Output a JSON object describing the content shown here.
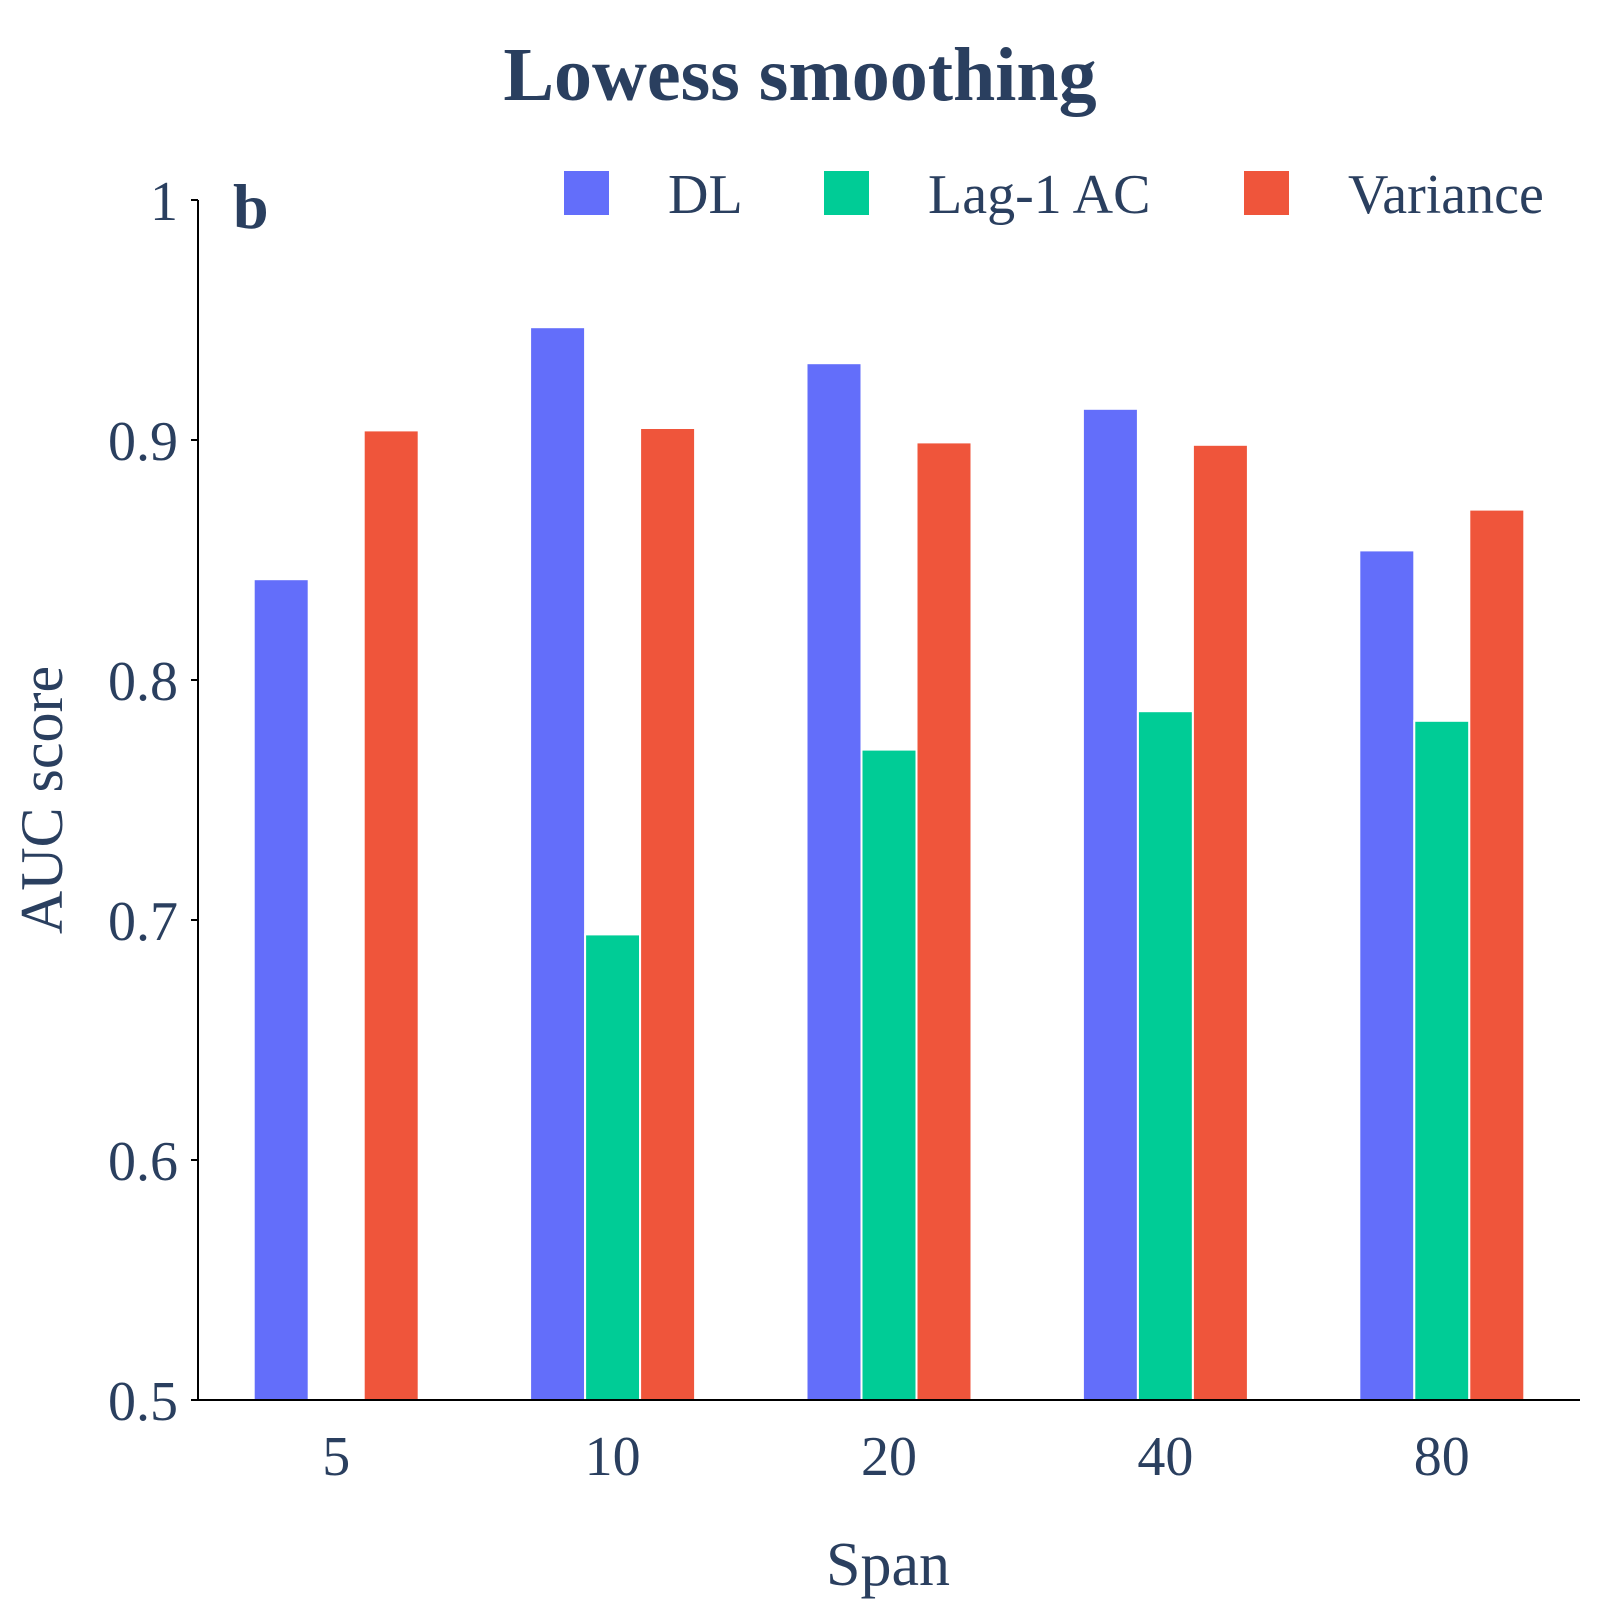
{
  "chart_data": {
    "type": "bar",
    "title": "Lowess smoothing",
    "panel_label": "b",
    "xlabel": "Span",
    "ylabel": "AUC score",
    "categories": [
      "5",
      "10",
      "20",
      "40",
      "80"
    ],
    "ylim": [
      0.5,
      1
    ],
    "yticks": [
      "0.5",
      "0.6",
      "0.7",
      "0.8",
      "0.9",
      "1"
    ],
    "legend_position": "top-right",
    "grid": false,
    "series": [
      {
        "name": "DL",
        "color": "#636efa",
        "values": [
          0.842,
          0.947,
          0.932,
          0.913,
          0.854
        ]
      },
      {
        "name": "Lag-1 AC",
        "color": "#00cc96",
        "values": [
          0.5,
          0.694,
          0.771,
          0.787,
          0.783
        ]
      },
      {
        "name": "Variance",
        "color": "#ef553b",
        "values": [
          0.904,
          0.905,
          0.899,
          0.898,
          0.871
        ]
      }
    ]
  }
}
